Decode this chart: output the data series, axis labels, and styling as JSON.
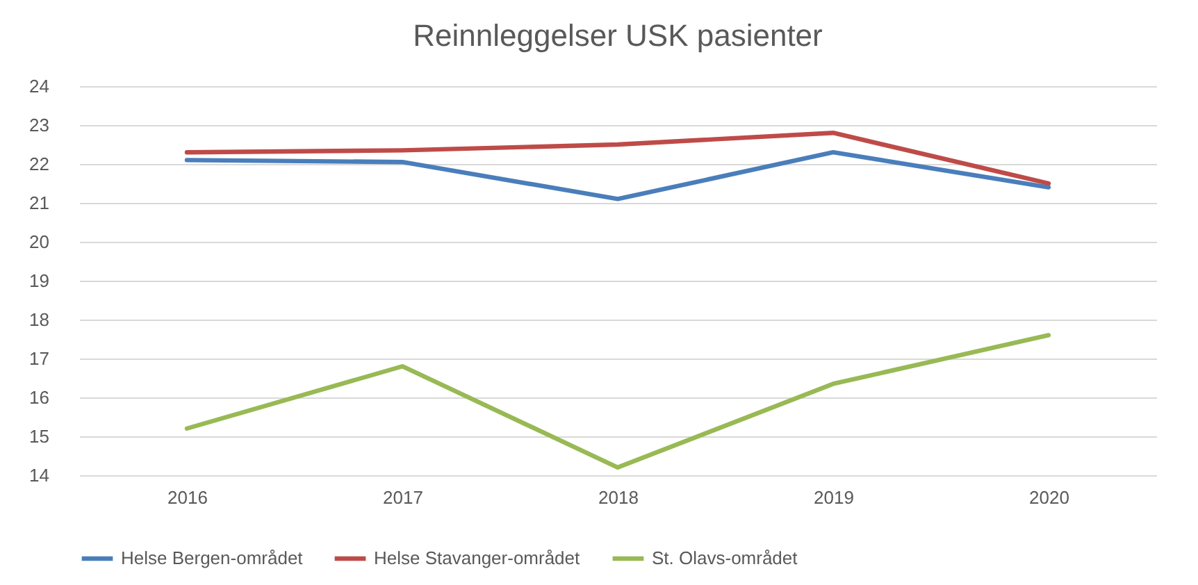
{
  "chart_data": {
    "type": "line",
    "title": "Reinnleggelser USK pasienter",
    "categories": [
      "2016",
      "2017",
      "2018",
      "2019",
      "2020"
    ],
    "series": [
      {
        "name": "Helse Bergen-området",
        "color": "#4a7ebb",
        "values": [
          22.1,
          22.05,
          21.1,
          22.3,
          21.4
        ]
      },
      {
        "name": "Helse Stavanger-området",
        "color": "#be4b48",
        "values": [
          22.3,
          22.35,
          22.5,
          22.8,
          21.5
        ]
      },
      {
        "name": "St. Olavs-området",
        "color": "#98b954",
        "values": [
          15.2,
          16.8,
          14.2,
          16.35,
          17.6
        ]
      }
    ],
    "ylim": [
      14,
      24
    ],
    "yticks": [
      14,
      15,
      16,
      17,
      18,
      19,
      20,
      21,
      22,
      23,
      24
    ],
    "grid": "y",
    "legend": "bottom",
    "marker": "none",
    "line_style": "solid"
  }
}
